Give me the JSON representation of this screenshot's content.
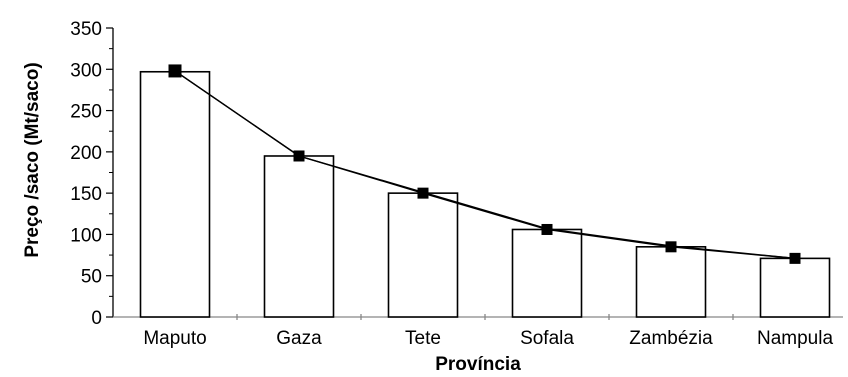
{
  "chart_data": {
    "type": "bar",
    "categories": [
      "Maputo",
      "Gaza",
      "Tete",
      "Sofala",
      "Zambézia",
      "Nampula"
    ],
    "values": [
      297,
      195,
      150,
      106,
      85,
      71
    ],
    "series": [
      {
        "name": "",
        "type": "bar",
        "values": [
          297,
          195,
          150,
          106,
          85,
          71
        ]
      },
      {
        "name": "",
        "type": "line",
        "marker": "square",
        "values": [
          298,
          195,
          150,
          106,
          85,
          71
        ]
      },
      {
        "name": "",
        "type": "line",
        "values": [
          298,
          195,
          151,
          107,
          86,
          71
        ]
      }
    ],
    "title": "",
    "xlabel": "Província",
    "ylabel": "Preço /saco (Mt/saco)",
    "ylim": [
      0,
      350
    ],
    "yticks": [
      0,
      50,
      100,
      150,
      200,
      250,
      300,
      350
    ],
    "grid": false,
    "legend": "none",
    "colors": {
      "bar_fill": "#ffffff",
      "bar_stroke": "#000000",
      "line": "#000000",
      "marker": "#000000"
    }
  }
}
